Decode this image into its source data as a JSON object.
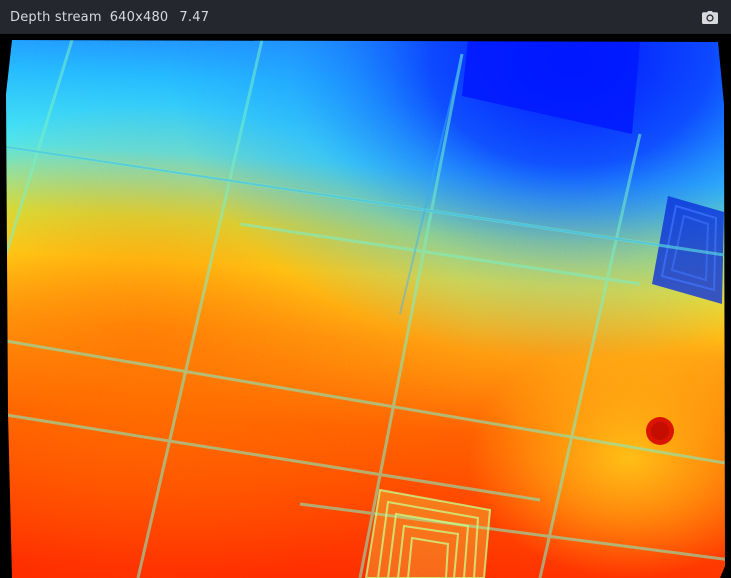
{
  "stream": {
    "title": "Depth stream",
    "resolution": "640x480",
    "fps": "7.47"
  },
  "icons": {
    "snapshot": "camera-icon"
  },
  "colors": {
    "titlebar_bg": "#24272d",
    "title_text": "#d7d9dd",
    "background": "#000000",
    "colormap": [
      "#0000ff",
      "#00ccff",
      "#ffff00",
      "#ff7f00",
      "#ff1a00"
    ]
  }
}
